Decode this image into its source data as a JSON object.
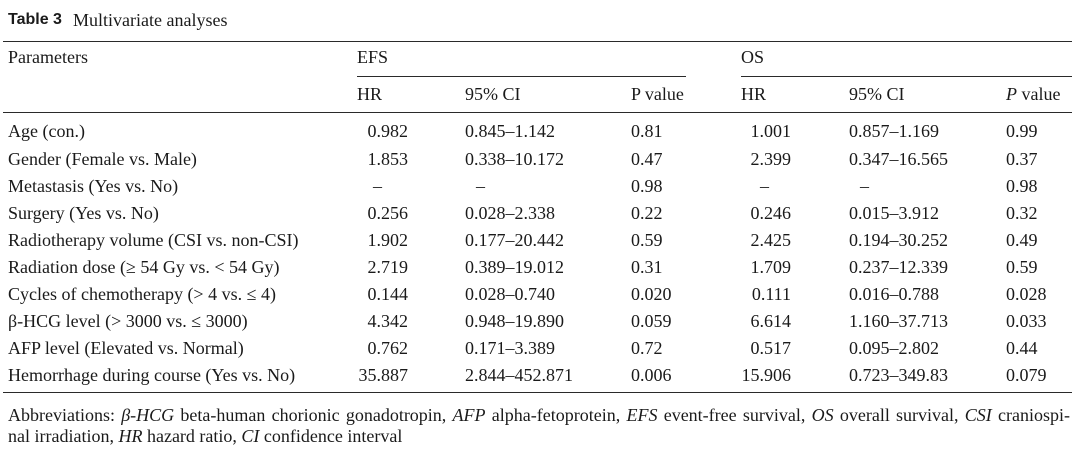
{
  "title": {
    "label": "Table 3",
    "caption": "Multivariate analyses"
  },
  "columns": {
    "parameters": "Parameters",
    "efs": {
      "group": "EFS",
      "hr": "HR",
      "ci": "95% CI",
      "p": "P value"
    },
    "os": {
      "group": "OS",
      "hr": "HR",
      "ci": "95% CI",
      "p_italic": "P",
      "p_rest": "value"
    }
  },
  "rows": [
    {
      "parameter": "Age (con.)",
      "efs": {
        "hr": "0.982",
        "ci": "0.845–1.142",
        "p": "0.81"
      },
      "os": {
        "hr": "1.001",
        "ci": "0.857–1.169",
        "p": "0.99"
      }
    },
    {
      "parameter": "Gender (Female vs. Male)",
      "efs": {
        "hr": "1.853",
        "ci": "0.338–10.172",
        "p": "0.47"
      },
      "os": {
        "hr": "2.399",
        "ci": "0.347–16.565",
        "p": "0.37"
      }
    },
    {
      "parameter": "Metastasis (Yes vs. No)",
      "efs": {
        "hr": "–",
        "ci": "–",
        "p": "0.98"
      },
      "os": {
        "hr": "–",
        "ci": "–",
        "p": "0.98"
      }
    },
    {
      "parameter": "Surgery (Yes vs. No)",
      "efs": {
        "hr": "0.256",
        "ci": "0.028–2.338",
        "p": "0.22"
      },
      "os": {
        "hr": "0.246",
        "ci": "0.015–3.912",
        "p": "0.32"
      }
    },
    {
      "parameter": "Radiotherapy volume (CSI vs. non-CSI)",
      "efs": {
        "hr": "1.902",
        "ci": "0.177–20.442",
        "p": "0.59"
      },
      "os": {
        "hr": "2.425",
        "ci": "0.194–30.252",
        "p": "0.49"
      }
    },
    {
      "parameter": "Radiation dose (≥ 54 Gy vs. < 54 Gy)",
      "efs": {
        "hr": "2.719",
        "ci": "0.389–19.012",
        "p": "0.31"
      },
      "os": {
        "hr": "1.709",
        "ci": "0.237–12.339",
        "p": "0.59"
      }
    },
    {
      "parameter": "Cycles of chemotherapy (> 4 vs. ≤ 4)",
      "efs": {
        "hr": "0.144",
        "ci": "0.028–0.740",
        "p": "0.020"
      },
      "os": {
        "hr": "0.111",
        "ci": "0.016–0.788",
        "p": "0.028"
      }
    },
    {
      "parameter": "β-HCG level (> 3000 vs. ≤ 3000)",
      "efs": {
        "hr": "4.342",
        "ci": "0.948–19.890",
        "p": "0.059"
      },
      "os": {
        "hr": "6.614",
        "ci": "1.160–37.713",
        "p": "0.033"
      }
    },
    {
      "parameter": "AFP level (Elevated vs. Normal)",
      "efs": {
        "hr": "0.762",
        "ci": "0.171–3.389",
        "p": "0.72"
      },
      "os": {
        "hr": "0.517",
        "ci": "0.095–2.802",
        "p": "0.44"
      }
    },
    {
      "parameter": "Hemorrhage during course (Yes vs. No)",
      "efs": {
        "hr": "35.887",
        "ci": "2.844–452.871",
        "p": "0.006"
      },
      "os": {
        "hr": "15.906",
        "ci": "0.723–349.83",
        "p": "0.079"
      }
    }
  ],
  "footnote": {
    "label": "Abbreviations:",
    "line1": [
      {
        "abbr": "β-HCG",
        "def": "beta-human chorionic gonadotropin,"
      },
      {
        "abbr": "AFP",
        "def": "alpha-fetoprotein,"
      },
      {
        "abbr": "EFS",
        "def": "event-free survival,"
      },
      {
        "abbr": "OS",
        "def": "overall survival,"
      },
      {
        "abbr": "CSI",
        "def": "craniospi-"
      }
    ],
    "line2_lead": "nal irradiation,",
    "line2": [
      {
        "abbr": "HR",
        "def": "hazard ratio,"
      },
      {
        "abbr": "CI",
        "def": "confidence interval"
      }
    ]
  }
}
